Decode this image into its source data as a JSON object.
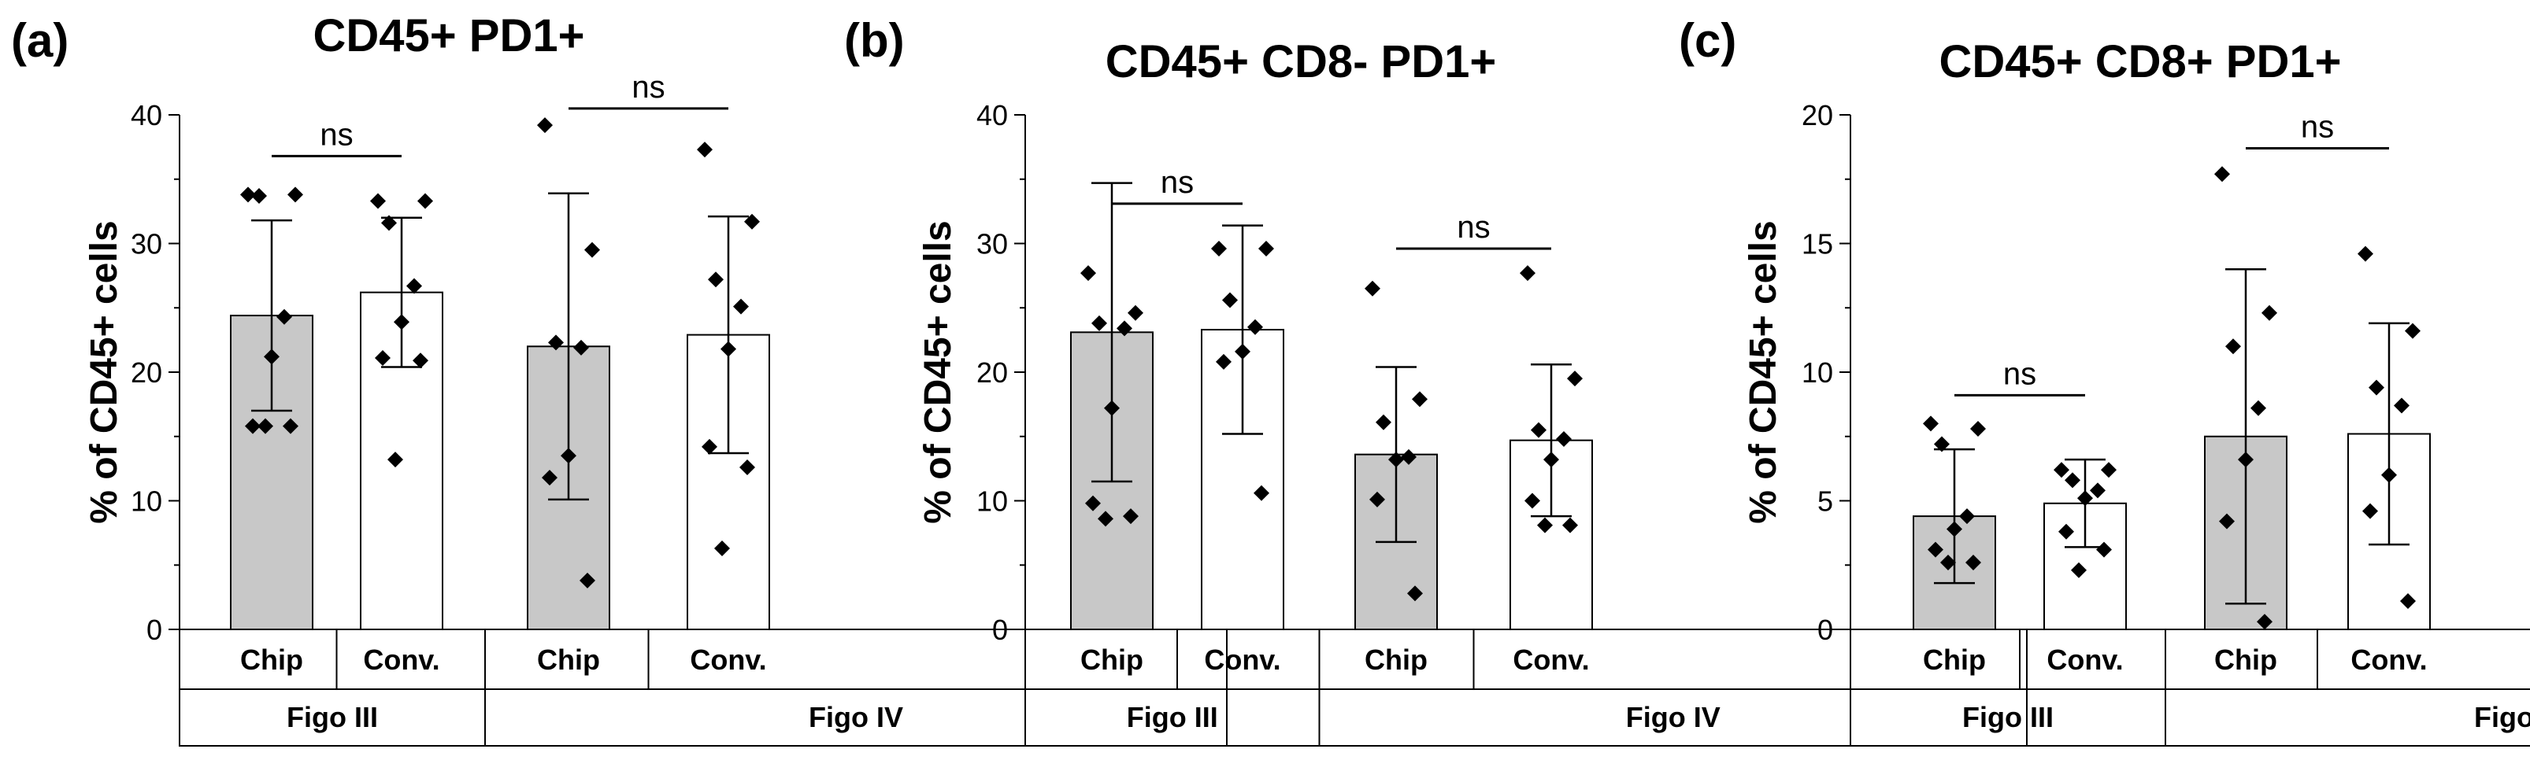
{
  "chart_data": [
    {
      "type": "bar",
      "panel": "(a)",
      "title": "CD45+ PD1+",
      "ylabel": "% of CD45+ cells",
      "ylim": [
        0,
        40
      ],
      "yticks": [
        0,
        10,
        20,
        30,
        40
      ],
      "categories": [
        "Chip",
        "Conv.",
        "Chip",
        "Conv."
      ],
      "groups": [
        "Figo III",
        "Figo IV"
      ],
      "bar_fills": [
        "#c8c8c8",
        "#ffffff",
        "#c8c8c8",
        "#ffffff"
      ],
      "values": [
        24.4,
        26.2,
        22.0,
        22.9
      ],
      "sd": [
        7.4,
        5.8,
        11.9,
        9.2
      ],
      "points": [
        [
          33.8,
          33.8,
          33.7,
          24.3,
          21.2,
          15.8,
          15.8,
          15.8
        ],
        [
          33.3,
          33.3,
          31.6,
          26.7,
          23.9,
          21.1,
          20.9,
          13.2
        ],
        [
          39.2,
          29.5,
          22.3,
          21.9,
          13.5,
          11.8,
          3.8
        ],
        [
          37.3,
          31.7,
          27.2,
          25.1,
          21.8,
          14.2,
          12.6,
          6.3
        ]
      ],
      "significance": [
        {
          "label": "ns",
          "from": 0,
          "to": 1,
          "y": 36.8
        },
        {
          "label": "ns",
          "from": 2,
          "to": 3,
          "y": 40.5
        }
      ]
    },
    {
      "type": "bar",
      "panel": "(b)",
      "title": "CD45+ CD8- PD1+",
      "ylabel": "% of CD45+ cells",
      "ylim": [
        0,
        40
      ],
      "yticks": [
        0,
        10,
        20,
        30,
        40
      ],
      "categories": [
        "Chip",
        "Conv.",
        "Chip",
        "Conv."
      ],
      "groups": [
        "Figo III",
        "Figo IV"
      ],
      "bar_fills": [
        "#c8c8c8",
        "#ffffff",
        "#c8c8c8",
        "#ffffff"
      ],
      "values": [
        23.1,
        23.3,
        13.6,
        14.7
      ],
      "sd": [
        11.6,
        8.1,
        6.8,
        5.9
      ],
      "points": [
        [
          27.7,
          24.6,
          23.8,
          23.4,
          17.2,
          9.8,
          8.8,
          8.6
        ],
        [
          29.6,
          29.6,
          25.6,
          23.5,
          21.6,
          20.8,
          10.6
        ],
        [
          26.5,
          17.9,
          16.1,
          13.4,
          13.2,
          10.1,
          2.8
        ],
        [
          27.7,
          19.5,
          15.5,
          14.8,
          13.2,
          10.0,
          8.1,
          8.1
        ]
      ],
      "significance": [
        {
          "label": "ns",
          "from": 0,
          "to": 1,
          "y": 33.1
        },
        {
          "label": "ns",
          "from": 2,
          "to": 3,
          "y": 29.6
        }
      ]
    },
    {
      "type": "bar",
      "panel": "(c)",
      "title": "CD45+ CD8+ PD1+",
      "ylabel": "% of CD45+ cells",
      "ylim": [
        0,
        20
      ],
      "yticks": [
        0,
        5,
        10,
        15,
        20
      ],
      "categories": [
        "Chip",
        "Conv.",
        "Chip",
        "Conv."
      ],
      "groups": [
        "Figo III",
        "Figo IV"
      ],
      "bar_fills": [
        "#c8c8c8",
        "#ffffff",
        "#c8c8c8",
        "#ffffff"
      ],
      "values": [
        4.4,
        4.9,
        7.5,
        7.6
      ],
      "sd": [
        2.6,
        1.7,
        6.5,
        4.3
      ],
      "points": [
        [
          8.0,
          7.8,
          7.2,
          4.4,
          3.9,
          3.1,
          2.6,
          2.6
        ],
        [
          6.2,
          6.2,
          5.8,
          5.4,
          5.1,
          3.8,
          3.1,
          2.3
        ],
        [
          17.7,
          12.3,
          11.0,
          8.6,
          6.6,
          4.2,
          0.3
        ],
        [
          14.6,
          11.6,
          9.4,
          8.7,
          6.0,
          4.6,
          1.1
        ]
      ],
      "significance": [
        {
          "label": "ns",
          "from": 0,
          "to": 1,
          "y": 9.1
        },
        {
          "label": "ns",
          "from": 2,
          "to": 3,
          "y": 18.7
        }
      ]
    }
  ]
}
